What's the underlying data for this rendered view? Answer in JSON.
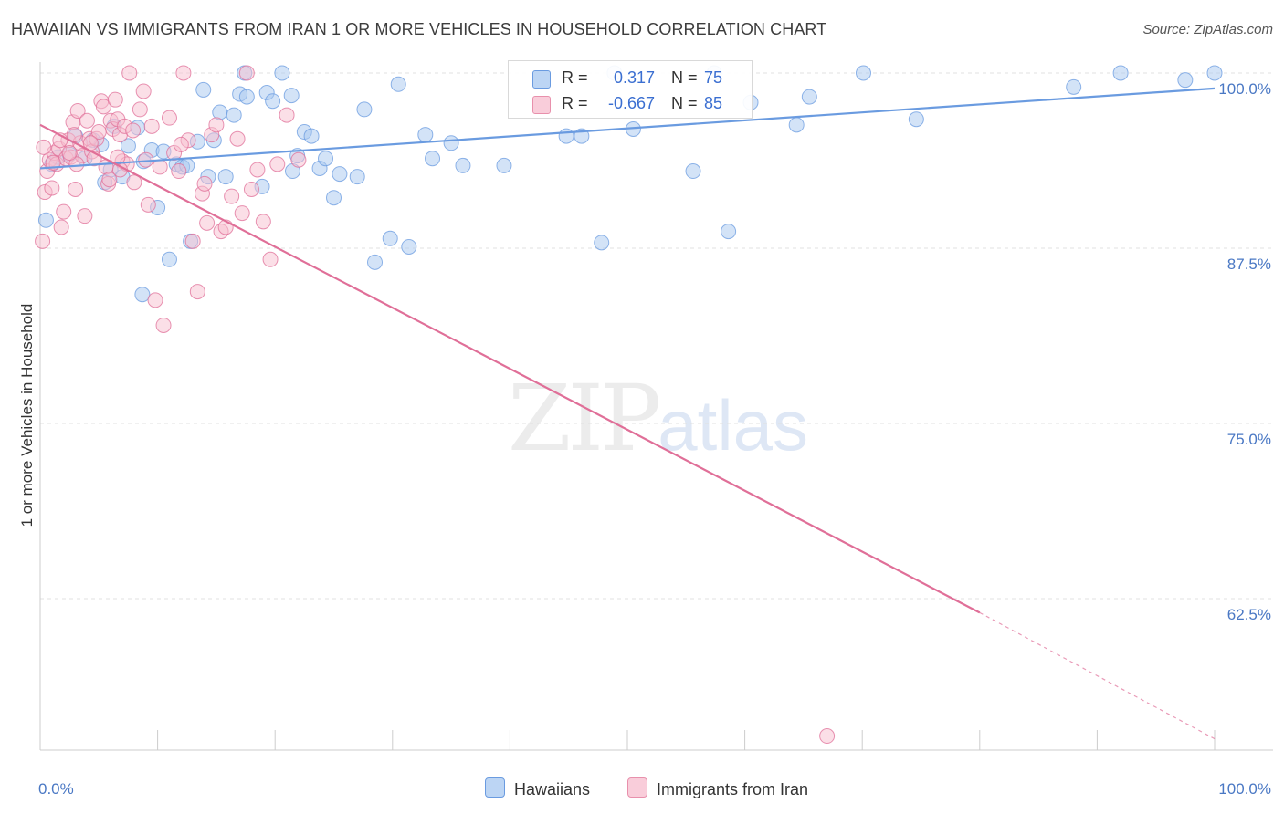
{
  "title": "HAWAIIAN VS IMMIGRANTS FROM IRAN 1 OR MORE VEHICLES IN HOUSEHOLD CORRELATION CHART",
  "source": "Source: ZipAtlas.com",
  "watermark": {
    "zip": "ZIP",
    "atlas": "atlas"
  },
  "legend": {
    "r_label": "R =",
    "n_label": "N =",
    "rows": [
      {
        "name": "Hawaiians",
        "r": "0.317",
        "n": "75",
        "color": "#a8c8f0",
        "border": "#6a9be0"
      },
      {
        "name": "Immigrants from Iran",
        "r": "-0.667",
        "n": "85",
        "color": "#f8c0d0",
        "border": "#e890ac"
      }
    ]
  },
  "chart_data": {
    "type": "scatter",
    "title": "HAWAIIAN VS IMMIGRANTS FROM IRAN 1 OR MORE VEHICLES IN HOUSEHOLD CORRELATION CHART",
    "xlabel": "",
    "ylabel": "1 or more Vehicles in Household",
    "xlim": [
      0,
      100
    ],
    "ylim": [
      48,
      101
    ],
    "x_tick_labels": [
      "0.0%",
      "100.0%"
    ],
    "y_ticks": [
      100,
      87.5,
      75,
      62.5
    ],
    "y_tick_labels": [
      "100.0%",
      "87.5%",
      "75.0%",
      "62.5%"
    ],
    "grid": true,
    "legend_position": "bottom-center",
    "series": [
      {
        "name": "Hawaiians",
        "color": "#6a9be0",
        "fill": "#a8c8f0",
        "trend": {
          "x0": 0,
          "y0": 93.2,
          "x1": 100,
          "y1": 98.9
        },
        "points": [
          [
            0.5,
            89.5
          ],
          [
            1,
            93.5
          ],
          [
            1.5,
            94.0
          ],
          [
            2.5,
            94.2
          ],
          [
            3.0,
            95.5
          ],
          [
            3.8,
            93.9
          ],
          [
            4.5,
            95.2
          ],
          [
            5.2,
            94.9
          ],
          [
            5.5,
            92.2
          ],
          [
            6.0,
            93.1
          ],
          [
            6.3,
            96.2
          ],
          [
            7.0,
            92.6
          ],
          [
            7.5,
            94.8
          ],
          [
            8.3,
            96.1
          ],
          [
            8.7,
            84.2
          ],
          [
            8.8,
            93.7
          ],
          [
            9.5,
            94.5
          ],
          [
            10.0,
            90.4
          ],
          [
            10.5,
            94.4
          ],
          [
            11.0,
            86.7
          ],
          [
            11.6,
            93.5
          ],
          [
            12.1,
            93.3
          ],
          [
            12.5,
            93.4
          ],
          [
            12.8,
            88.0
          ],
          [
            13.4,
            95.1
          ],
          [
            13.9,
            98.8
          ],
          [
            14.3,
            92.6
          ],
          [
            14.8,
            95.2
          ],
          [
            15.3,
            97.2
          ],
          [
            15.8,
            92.6
          ],
          [
            16.5,
            97.0
          ],
          [
            17.0,
            98.5
          ],
          [
            17.4,
            100.0
          ],
          [
            17.6,
            98.3
          ],
          [
            18.9,
            91.9
          ],
          [
            19.3,
            98.6
          ],
          [
            19.8,
            98.0
          ],
          [
            20.6,
            100.0
          ],
          [
            21.4,
            98.4
          ],
          [
            21.5,
            93.0
          ],
          [
            21.9,
            94.1
          ],
          [
            22.5,
            95.8
          ],
          [
            23.1,
            95.5
          ],
          [
            23.8,
            93.2
          ],
          [
            24.3,
            93.9
          ],
          [
            25.0,
            91.1
          ],
          [
            25.5,
            92.8
          ],
          [
            27.0,
            92.6
          ],
          [
            27.6,
            97.4
          ],
          [
            28.5,
            86.5
          ],
          [
            29.8,
            88.2
          ],
          [
            30.5,
            99.2
          ],
          [
            31.4,
            87.6
          ],
          [
            32.8,
            95.6
          ],
          [
            33.4,
            93.9
          ],
          [
            35.0,
            95.0
          ],
          [
            36.0,
            93.4
          ],
          [
            39.5,
            93.4
          ],
          [
            44.8,
            95.5
          ],
          [
            46.1,
            95.5
          ],
          [
            47.8,
            87.9
          ],
          [
            48.9,
            100.0
          ],
          [
            50.5,
            96.0
          ],
          [
            55.6,
            93.0
          ],
          [
            57.4,
            100.0
          ],
          [
            58.6,
            88.7
          ],
          [
            60.5,
            97.9
          ],
          [
            64.4,
            96.3
          ],
          [
            65.5,
            98.3
          ],
          [
            70.1,
            100.0
          ],
          [
            74.6,
            96.7
          ],
          [
            88.0,
            99.0
          ],
          [
            92.0,
            100.0
          ],
          [
            97.5,
            99.5
          ],
          [
            100.0,
            100.0
          ]
        ]
      },
      {
        "name": "Immigrants from Iran",
        "color": "#e06f98",
        "fill": "#f8c0d0",
        "trend": {
          "x0": 0,
          "y0": 96.3,
          "x1": 80,
          "y1": 61.5
        },
        "trend_dashed": {
          "x0": 80,
          "y0": 61.5,
          "x1": 100,
          "y1": 52.5
        },
        "points": [
          [
            0.2,
            88.0
          ],
          [
            0.4,
            91.5
          ],
          [
            0.6,
            93.0
          ],
          [
            0.8,
            93.8
          ],
          [
            1.0,
            91.8
          ],
          [
            1.2,
            94.3
          ],
          [
            1.4,
            93.5
          ],
          [
            1.6,
            94.6
          ],
          [
            1.8,
            89.0
          ],
          [
            2.0,
            90.1
          ],
          [
            2.2,
            93.9
          ],
          [
            2.4,
            95.2
          ],
          [
            2.6,
            94.0
          ],
          [
            2.8,
            96.5
          ],
          [
            3.0,
            91.7
          ],
          [
            3.2,
            97.3
          ],
          [
            3.4,
            95.0
          ],
          [
            3.6,
            94.1
          ],
          [
            3.8,
            89.8
          ],
          [
            4.0,
            96.6
          ],
          [
            4.2,
            95.3
          ],
          [
            4.4,
            94.4
          ],
          [
            4.6,
            93.9
          ],
          [
            4.8,
            95.3
          ],
          [
            5.0,
            95.8
          ],
          [
            5.2,
            98.0
          ],
          [
            5.4,
            97.6
          ],
          [
            5.6,
            93.3
          ],
          [
            5.8,
            92.1
          ],
          [
            6.0,
            96.6
          ],
          [
            6.2,
            96.0
          ],
          [
            6.4,
            98.1
          ],
          [
            6.6,
            96.7
          ],
          [
            6.8,
            95.6
          ],
          [
            7.0,
            93.7
          ],
          [
            7.2,
            96.2
          ],
          [
            7.4,
            93.5
          ],
          [
            7.6,
            100.0
          ],
          [
            8.0,
            92.2
          ],
          [
            8.5,
            97.4
          ],
          [
            8.8,
            98.7
          ],
          [
            9.2,
            90.6
          ],
          [
            9.5,
            96.2
          ],
          [
            9.8,
            83.8
          ],
          [
            10.2,
            93.3
          ],
          [
            10.5,
            82.0
          ],
          [
            11.0,
            96.8
          ],
          [
            11.4,
            94.3
          ],
          [
            11.8,
            93.0
          ],
          [
            12.2,
            100.0
          ],
          [
            12.6,
            95.2
          ],
          [
            13.0,
            88.0
          ],
          [
            13.4,
            84.4
          ],
          [
            13.8,
            91.4
          ],
          [
            14.2,
            89.3
          ],
          [
            14.6,
            95.6
          ],
          [
            15.0,
            96.3
          ],
          [
            15.4,
            88.7
          ],
          [
            15.8,
            89.0
          ],
          [
            16.3,
            91.2
          ],
          [
            16.8,
            95.3
          ],
          [
            17.2,
            90.0
          ],
          [
            17.6,
            100.0
          ],
          [
            18.0,
            91.7
          ],
          [
            18.5,
            93.1
          ],
          [
            19.0,
            89.4
          ],
          [
            19.6,
            86.7
          ],
          [
            20.2,
            93.5
          ],
          [
            21.0,
            97.0
          ],
          [
            22.0,
            93.8
          ],
          [
            6.8,
            93.1
          ],
          [
            4.3,
            95.0
          ],
          [
            3.1,
            93.5
          ],
          [
            2.5,
            94.3
          ],
          [
            1.7,
            95.2
          ],
          [
            5.9,
            92.4
          ],
          [
            7.9,
            95.9
          ],
          [
            9.0,
            93.8
          ],
          [
            12.0,
            94.9
          ],
          [
            14.0,
            92.1
          ],
          [
            0.3,
            94.7
          ],
          [
            1.1,
            93.6
          ],
          [
            2.9,
            95.6
          ],
          [
            67.0,
            52.7
          ],
          [
            6.6,
            94.0
          ]
        ]
      }
    ]
  }
}
